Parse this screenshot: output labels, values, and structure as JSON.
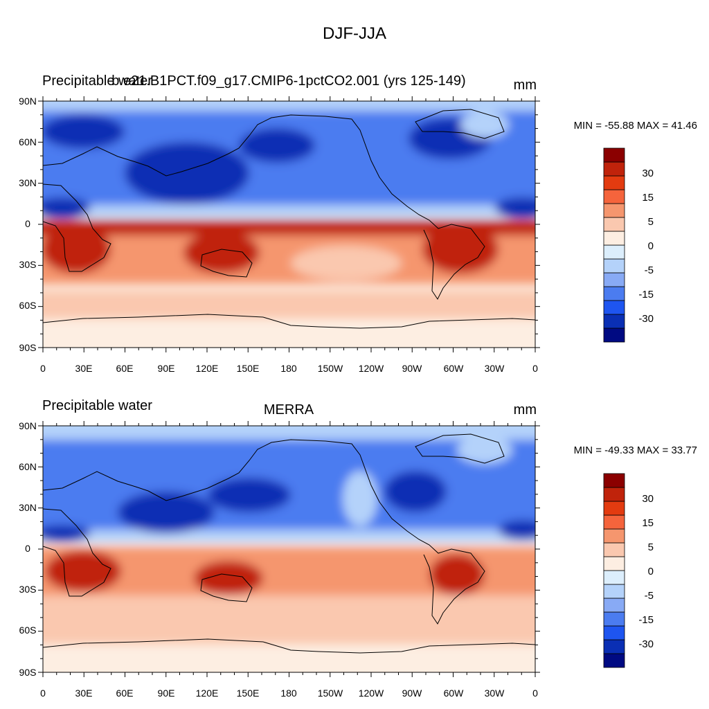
{
  "page": {
    "title": "DJF-JJA"
  },
  "panels": [
    {
      "left_title": "Precipitable water",
      "center_title": "b.e21.B1PCT.f09_g17.CMIP6-1pctCO2.001 (yrs 125-149)",
      "units": "mm",
      "stats": "MIN = -55.88 MAX =  41.46",
      "lat_labels": [
        "90N",
        "60N",
        "30N",
        "0",
        "30S",
        "60S",
        "90S"
      ],
      "lon_labels": [
        "0",
        "30E",
        "60E",
        "90E",
        "120E",
        "150E",
        "180",
        "150W",
        "120W",
        "90W",
        "60W",
        "30W",
        "0"
      ]
    },
    {
      "left_title": "Precipitable water",
      "center_title": "MERRA",
      "units": "mm",
      "stats": "MIN = -49.33 MAX =  33.77",
      "lat_labels": [
        "90N",
        "60N",
        "30N",
        "0",
        "30S",
        "60S",
        "90S"
      ],
      "lon_labels": [
        "0",
        "30E",
        "60E",
        "90E",
        "120E",
        "150E",
        "180",
        "150W",
        "120W",
        "90W",
        "60W",
        "30W",
        "0"
      ]
    }
  ],
  "colorbar": {
    "labels": [
      "30",
      "15",
      "5",
      "0",
      "-5",
      "-15",
      "-30"
    ],
    "colors": [
      "#8b0000",
      "#c0230b",
      "#e33b10",
      "#f5643c",
      "#f5966e",
      "#fac8af",
      "#fdeee2",
      "#dceefc",
      "#b4d2fa",
      "#88aaf5",
      "#4b7cf0",
      "#1e55f0",
      "#0a2fb4",
      "#000a82"
    ]
  },
  "field_colors": {
    "strong_pos": "#c0230b",
    "pos": "#f5966e",
    "weak_pos": "#fac8af",
    "neutral": "#fdeee2",
    "weak_neg": "#b4d2fa",
    "neg": "#4b7cf0",
    "strong_neg": "#0a2fb4"
  }
}
